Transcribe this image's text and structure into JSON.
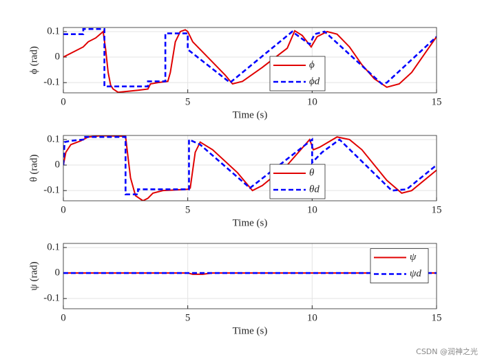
{
  "chart_data": [
    {
      "type": "line",
      "ylabel": "ϕ (rad)",
      "xlabel": "Time (s)",
      "xlim": [
        0,
        15
      ],
      "xticks": [
        0,
        5,
        10,
        15
      ],
      "ylim": [
        -0.14,
        0.116
      ],
      "yticks": [
        -0.1,
        0,
        0.1
      ],
      "grid": true,
      "legend": "south",
      "series": [
        {
          "name": "ϕ",
          "color": "#e00000",
          "style": "solid",
          "x": [
            0,
            0.4,
            0.8,
            1.0,
            1.3,
            1.6,
            1.7,
            1.8,
            1.9,
            2.0,
            2.2,
            2.5,
            3.0,
            3.4,
            3.5,
            3.8,
            4.2,
            4.3,
            4.4,
            4.5,
            4.7,
            4.9,
            5.0,
            5.1,
            5.2,
            5.5,
            6.0,
            6.5,
            6.8,
            7.2,
            8.0,
            9.0,
            9.3,
            9.6,
            9.96,
            10.2,
            10.6,
            11.0,
            11.5,
            12.0,
            12.5,
            13.0,
            13.5,
            14.0,
            14.5,
            15
          ],
          "values": [
            0,
            0.02,
            0.04,
            0.06,
            0.075,
            0.1,
            0.03,
            -0.06,
            -0.11,
            -0.125,
            -0.138,
            -0.135,
            -0.13,
            -0.125,
            -0.105,
            -0.1,
            -0.095,
            -0.06,
            0.0,
            0.06,
            0.1,
            0.107,
            0.1,
            0.08,
            0.06,
            0.03,
            -0.02,
            -0.07,
            -0.105,
            -0.095,
            -0.04,
            0.035,
            0.103,
            0.085,
            0.04,
            0.08,
            0.1,
            0.09,
            0.04,
            -0.03,
            -0.085,
            -0.118,
            -0.105,
            -0.06,
            0.01,
            0.08
          ]
        },
        {
          "name": "ϕd",
          "color": "#0000ff",
          "style": "dashed",
          "x": [
            0,
            0.8,
            0.8,
            1.65,
            1.65,
            3.4,
            3.4,
            4.1,
            4.1,
            5.0,
            5.0,
            6.7,
            9.2,
            9.9,
            10.1,
            10.5,
            12.8,
            13.0,
            15
          ],
          "values": [
            0.09,
            0.09,
            0.11,
            0.11,
            -0.115,
            -0.115,
            -0.095,
            -0.095,
            0.093,
            0.093,
            0.03,
            -0.1,
            0.1,
            0.05,
            0.09,
            0.1,
            -0.105,
            -0.1,
            0.08
          ]
        }
      ]
    },
    {
      "type": "line",
      "ylabel": "θ (rad)",
      "xlabel": "Time (s)",
      "xlim": [
        0,
        15
      ],
      "xticks": [
        0,
        5,
        10,
        15
      ],
      "ylim": [
        -0.14,
        0.116
      ],
      "yticks": [
        -0.1,
        0,
        0.1
      ],
      "grid": true,
      "legend": "south",
      "series": [
        {
          "name": "θ",
          "color": "#e00000",
          "style": "solid",
          "x": [
            0,
            0.1,
            0.3,
            0.7,
            1.0,
            1.5,
            2.5,
            2.6,
            2.7,
            2.9,
            3.2,
            3.4,
            3.6,
            4.0,
            5.0,
            5.1,
            5.3,
            5.5,
            6.0,
            7.0,
            7.6,
            8.0,
            9.0,
            9.9,
            10.05,
            10.3,
            11.0,
            11.5,
            12.0,
            13.0,
            13.6,
            14.0,
            15
          ],
          "values": [
            0,
            0.05,
            0.08,
            0.095,
            0.11,
            0.115,
            0.113,
            0.03,
            -0.05,
            -0.12,
            -0.14,
            -0.13,
            -0.11,
            -0.1,
            -0.095,
            -0.09,
            0.05,
            0.09,
            0.06,
            -0.03,
            -0.1,
            -0.08,
            0,
            0.1,
            0.06,
            0.07,
            0.11,
            0.1,
            0.06,
            -0.06,
            -0.11,
            -0.1,
            -0.02
          ]
        },
        {
          "name": "θd",
          "color": "#0000ff",
          "style": "dashed",
          "x": [
            0,
            0.05,
            0.3,
            0.8,
            0.8,
            2.5,
            2.5,
            3.0,
            3.0,
            5.05,
            5.05,
            5.5,
            7.5,
            10.0,
            10.0,
            10.4,
            11.1,
            13.2,
            13.8,
            15
          ],
          "values": [
            0,
            0.09,
            0.095,
            0.1,
            0.11,
            0.11,
            -0.115,
            -0.115,
            -0.095,
            -0.095,
            0.1,
            0.08,
            -0.09,
            0.1,
            0.01,
            0.05,
            0.1,
            -0.1,
            -0.095,
            0
          ]
        }
      ]
    },
    {
      "type": "line",
      "ylabel": "ψ (rad)",
      "xlabel": "Time (s)",
      "xlim": [
        0,
        15
      ],
      "xticks": [
        0,
        5,
        10,
        15
      ],
      "ylim": [
        -0.14,
        0.116
      ],
      "yticks": [
        -0.1,
        0,
        0.1
      ],
      "grid": true,
      "legend": "east",
      "series": [
        {
          "name": "ψ",
          "color": "#e00000",
          "style": "solid",
          "x": [
            0,
            5.0,
            5.2,
            5.6,
            6.0,
            15
          ],
          "values": [
            0,
            0,
            -0.005,
            -0.005,
            0,
            0
          ]
        },
        {
          "name": "ψd",
          "color": "#0000ff",
          "style": "dashed",
          "x": [
            0,
            15
          ],
          "values": [
            0,
            0
          ]
        }
      ]
    }
  ],
  "watermark": "CSDN @润神之光"
}
